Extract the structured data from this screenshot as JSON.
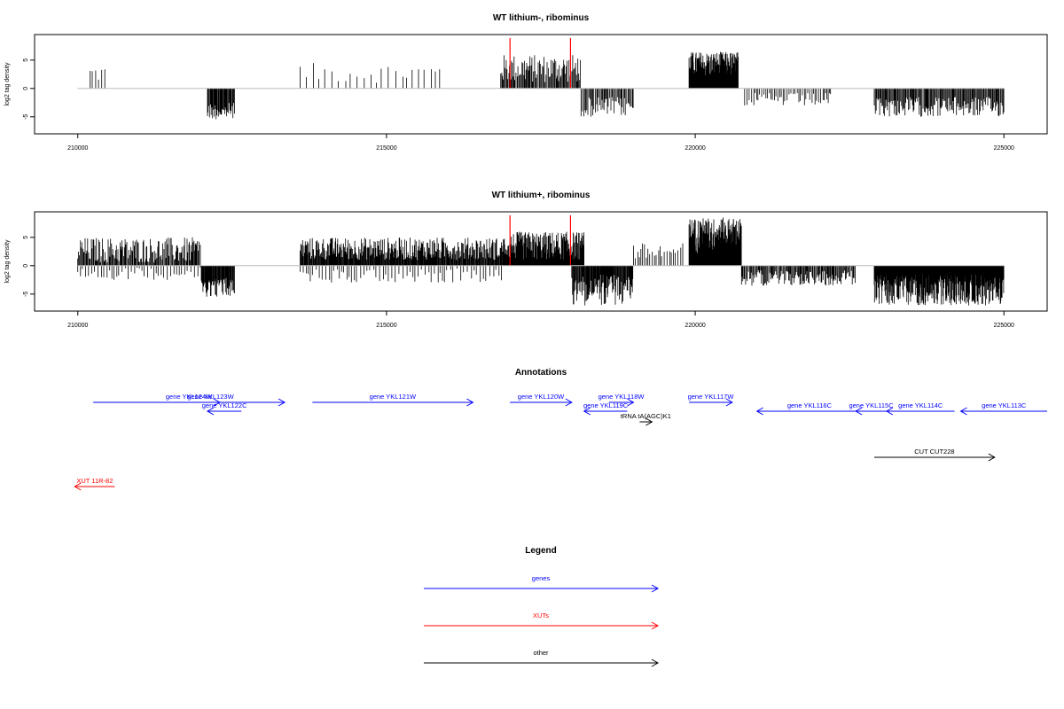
{
  "colors": {
    "gene": "#0000ff",
    "xut": "#ff0000",
    "other": "#000000",
    "marker": "#ff0000",
    "bar": "#000000",
    "baseline": "#bebebe"
  },
  "chart_data": [
    {
      "type": "bar",
      "title": "WT lithium-, ribominus",
      "ylabel": "log2 tag density",
      "xlim": [
        209300,
        225700
      ],
      "ylim": [
        -8,
        9.5
      ],
      "xticks": [
        "210000",
        "215000",
        "220000",
        "225000"
      ],
      "yticks": [
        "-5",
        "0",
        "5"
      ],
      "markers": [
        217000,
        217980
      ],
      "segments": [
        {
          "from": 210200,
          "to": 210450,
          "min": 1,
          "max": 4.2,
          "step": 40,
          "sign": 1
        },
        {
          "from": 212100,
          "to": 212550,
          "min": 2.5,
          "max": 5.5,
          "step": 12,
          "sign": -1
        },
        {
          "from": 213600,
          "to": 215900,
          "min": 1,
          "max": 4.5,
          "step": 90,
          "sign": 1
        },
        {
          "from": 216850,
          "to": 218150,
          "min": 1,
          "max": 6,
          "step": 14,
          "sign": 1
        },
        {
          "from": 218150,
          "to": 219000,
          "min": 1.5,
          "max": 5,
          "step": 18,
          "sign": -1
        },
        {
          "from": 219900,
          "to": 220700,
          "min": 2,
          "max": 6.5,
          "step": 6,
          "sign": 1
        },
        {
          "from": 220800,
          "to": 222200,
          "min": 0.8,
          "max": 3.2,
          "step": 30,
          "sign": -1
        },
        {
          "from": 222900,
          "to": 225000,
          "min": 1.5,
          "max": 5,
          "step": 14,
          "sign": -1
        }
      ]
    },
    {
      "type": "bar",
      "title": "WT lithium+, ribominus",
      "ylabel": "log2 tag density",
      "xlim": [
        209300,
        225700
      ],
      "ylim": [
        -8,
        9.5
      ],
      "xticks": [
        "210000",
        "215000",
        "220000",
        "225000"
      ],
      "yticks": [
        "-5",
        "0",
        "5"
      ],
      "markers": [
        217000,
        217980
      ],
      "segments": [
        {
          "from": 210000,
          "to": 212000,
          "min": 0.5,
          "max": 5,
          "step": 14,
          "sign": 1
        },
        {
          "from": 210000,
          "to": 212000,
          "min": 0.3,
          "max": 2.5,
          "step": 45,
          "sign": -1
        },
        {
          "from": 212000,
          "to": 212550,
          "min": 2,
          "max": 5.5,
          "step": 10,
          "sign": -1
        },
        {
          "from": 213600,
          "to": 216900,
          "min": 1,
          "max": 5,
          "step": 10,
          "sign": 1
        },
        {
          "from": 213600,
          "to": 216900,
          "min": 0.5,
          "max": 3,
          "step": 50,
          "sign": -1
        },
        {
          "from": 216900,
          "to": 218200,
          "min": 1,
          "max": 6,
          "step": 7,
          "sign": 1
        },
        {
          "from": 218000,
          "to": 219000,
          "min": 1.5,
          "max": 7,
          "step": 10,
          "sign": -1
        },
        {
          "from": 219000,
          "to": 219800,
          "min": 0.8,
          "max": 4,
          "step": 35,
          "sign": 1
        },
        {
          "from": 219900,
          "to": 220750,
          "min": 2,
          "max": 8.5,
          "step": 4,
          "sign": 1
        },
        {
          "from": 220750,
          "to": 222600,
          "min": 0.8,
          "max": 3.5,
          "step": 14,
          "sign": -1
        },
        {
          "from": 222900,
          "to": 225000,
          "min": 1.5,
          "max": 7,
          "step": 6,
          "sign": -1
        }
      ]
    }
  ],
  "annotations": {
    "title": "Annotations",
    "genes": [
      {
        "label": "gene YKL124W",
        "from": 210250,
        "to": 213350,
        "dir": "right",
        "row": 0
      },
      {
        "label": "gene YKL123W",
        "from": 212000,
        "to": 212300,
        "dir": "right",
        "row": 0
      },
      {
        "label": "gene YKL122C",
        "from": 212100,
        "to": 212650,
        "dir": "left",
        "row": 1
      },
      {
        "label": "gene YKL121W",
        "from": 213800,
        "to": 216400,
        "dir": "right",
        "row": 0
      },
      {
        "label": "gene YKL120W",
        "from": 217000,
        "to": 218000,
        "dir": "right",
        "row": 0
      },
      {
        "label": "gene YKL119C",
        "from": 218200,
        "to": 218900,
        "dir": "left",
        "row": 1
      },
      {
        "label": "gene YKL118W",
        "from": 218600,
        "to": 219000,
        "dir": "right",
        "row": 0
      },
      {
        "label": "gene YKL117W",
        "from": 219900,
        "to": 220600,
        "dir": "right",
        "row": 0
      },
      {
        "label": "gene YKL116C",
        "from": 221000,
        "to": 222700,
        "dir": "left",
        "row": 1
      },
      {
        "label": "gene YKL115C",
        "from": 222600,
        "to": 223100,
        "dir": "left",
        "row": 1
      },
      {
        "label": "gene YKL114C",
        "from": 223100,
        "to": 224200,
        "dir": "left",
        "row": 1
      },
      {
        "label": "gene YKL113C",
        "from": 224300,
        "to": 225700,
        "dir": "left",
        "row": 1
      }
    ],
    "others": [
      {
        "label": "tRNA tA(AGC)K1",
        "from": 219100,
        "to": 219300,
        "dir": "right",
        "row": 2
      },
      {
        "label": "CUT CUT228",
        "from": 222900,
        "to": 224850,
        "dir": "right",
        "row": 3
      }
    ],
    "xuts": [
      {
        "label": "XUT 11R-82",
        "from": 209950,
        "to": 210600,
        "dir": "left",
        "row": 4
      }
    ]
  },
  "legend": {
    "title": "Legend",
    "items": [
      {
        "label": "genes",
        "kind": "gene"
      },
      {
        "label": "XUTs",
        "kind": "xut"
      },
      {
        "label": "other",
        "kind": "other"
      }
    ]
  }
}
